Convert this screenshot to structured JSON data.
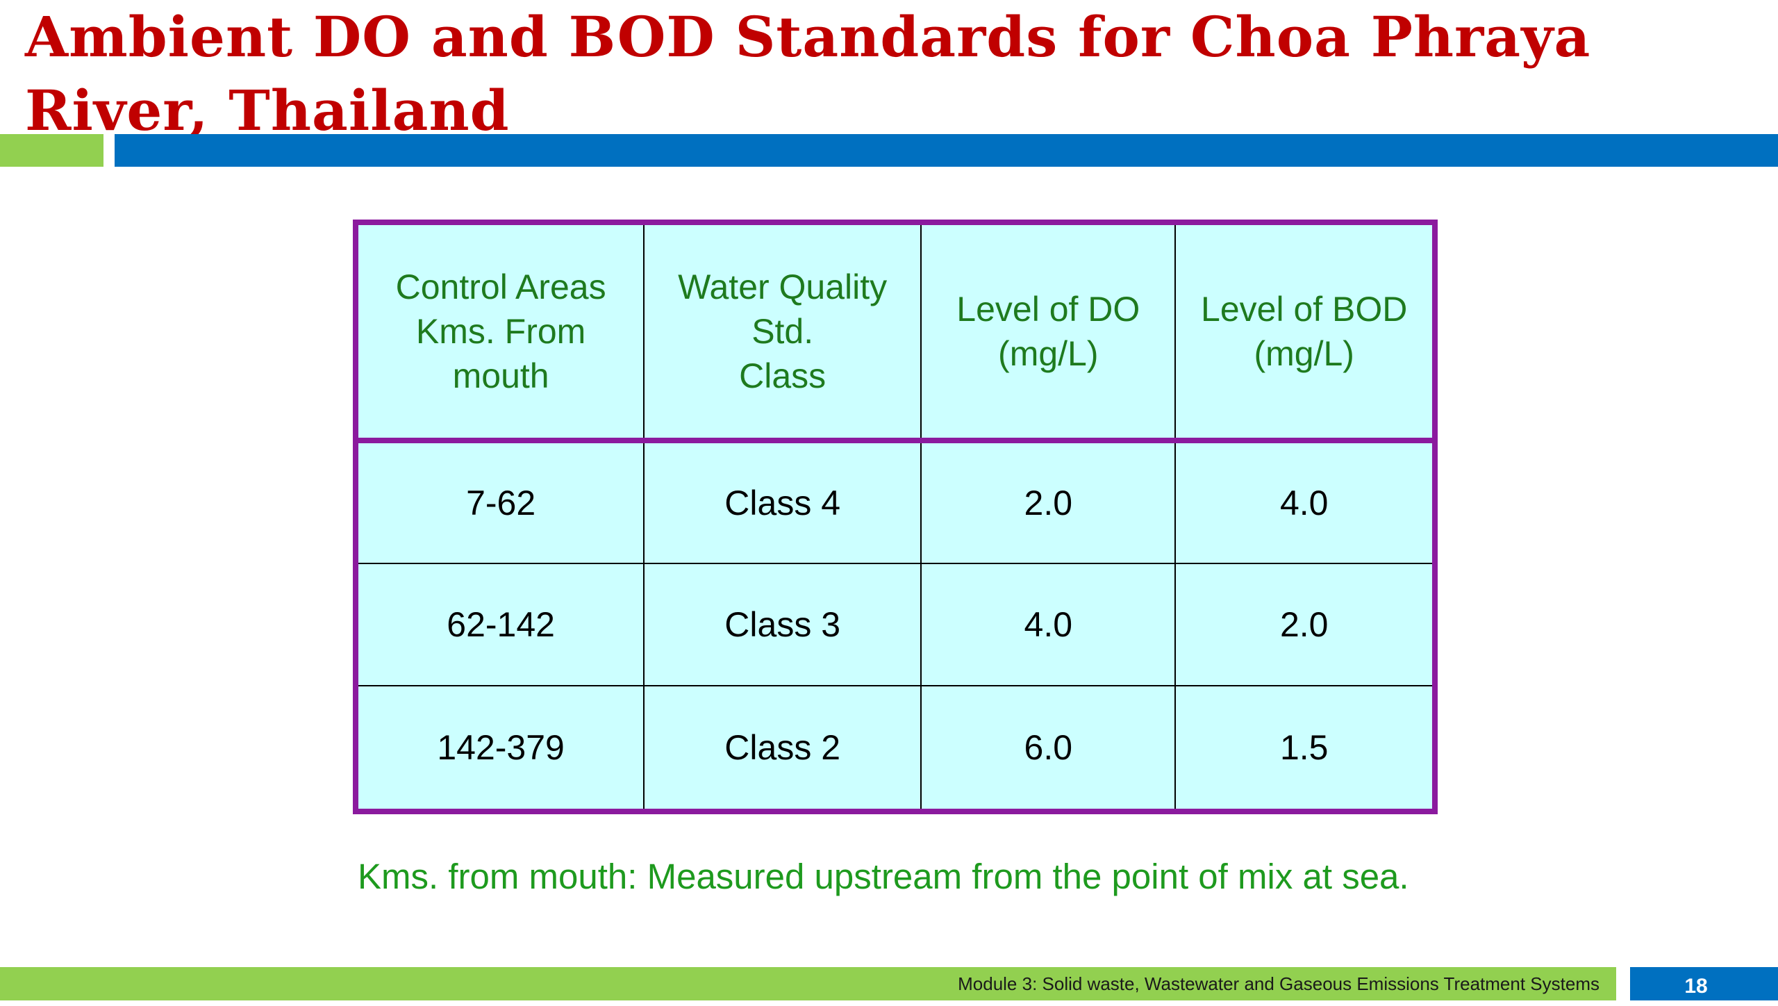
{
  "slide": {
    "title": "Ambient DO and BOD Standards for Choa Phraya River, Thailand",
    "colors": {
      "title": "#c00000",
      "accent_green": "#92d050",
      "accent_blue": "#0070c0",
      "table_border": "#8b1a9e",
      "table_fill": "#ccffff",
      "header_text": "#1e7a1e",
      "footnote_text": "#1e9a1e"
    }
  },
  "table": {
    "headers": [
      [
        "Control Areas",
        "Kms. From",
        "mouth"
      ],
      [
        "Water Quality",
        "Std.",
        "Class"
      ],
      [
        "Level of DO",
        "(mg/L)"
      ],
      [
        "Level of BOD",
        "(mg/L)"
      ]
    ],
    "rows": [
      [
        "7-62",
        "Class 4",
        "2.0",
        "4.0"
      ],
      [
        "62-142",
        "Class 3",
        "4.0",
        "2.0"
      ],
      [
        "142-379",
        "Class 2",
        "6.0",
        "1.5"
      ]
    ]
  },
  "footnote": "Kms. from mouth: Measured upstream from the point of mix at sea.",
  "footer": {
    "module_text": "Module 3: Solid waste, Wastewater and Gaseous Emissions Treatment Systems",
    "page_number": "18"
  }
}
